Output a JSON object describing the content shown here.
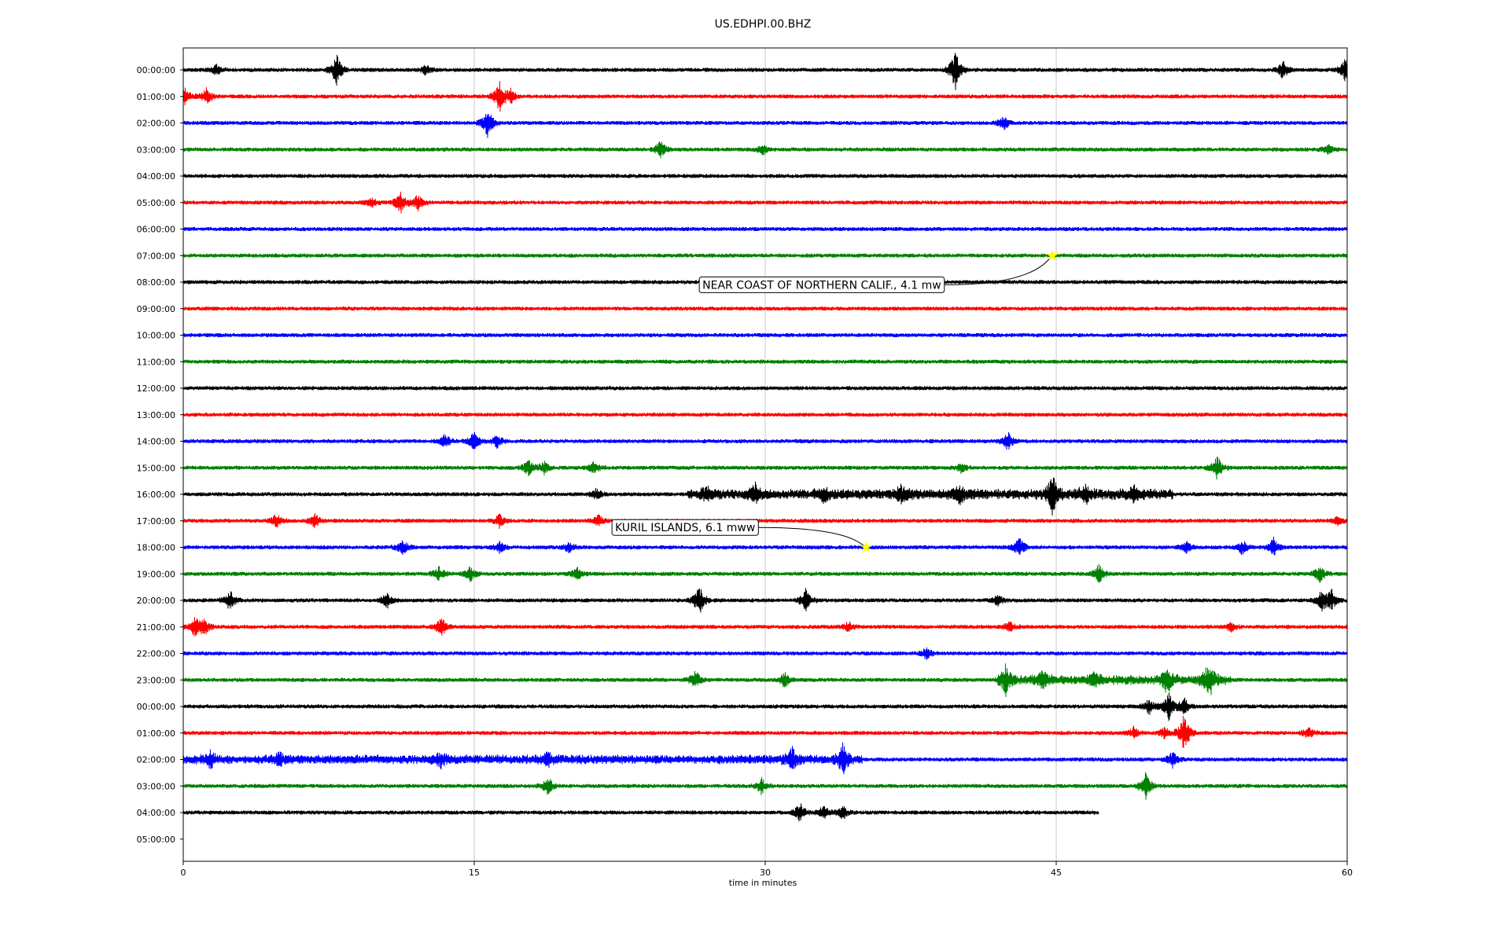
{
  "chart_data": {
    "type": "line",
    "title": "US.EDHPI.00.BHZ",
    "xlabel": "time in minutes",
    "ylabel": "",
    "xlim": [
      0,
      60
    ],
    "x_ticks": [
      "0",
      "15",
      "30",
      "45",
      "60"
    ],
    "x_tick_values": [
      0,
      15,
      30,
      45,
      60
    ],
    "grid": "vertical lines at 15, 30, 45",
    "row_labels": [
      "00:00:00",
      "01:00:00",
      "02:00:00",
      "03:00:00",
      "04:00:00",
      "05:00:00",
      "06:00:00",
      "07:00:00",
      "08:00:00",
      "09:00:00",
      "10:00:00",
      "11:00:00",
      "12:00:00",
      "13:00:00",
      "14:00:00",
      "15:00:00",
      "16:00:00",
      "17:00:00",
      "18:00:00",
      "19:00:00",
      "20:00:00",
      "21:00:00",
      "22:00:00",
      "23:00:00",
      "00:00:00",
      "01:00:00",
      "02:00:00",
      "03:00:00",
      "04:00:00",
      "05:00:00"
    ],
    "trace_colors": [
      "#000000",
      "#ff0000",
      "#0000ff",
      "#008000"
    ],
    "trace_end_minutes": [
      60,
      60,
      60,
      60,
      60,
      60,
      60,
      60,
      60,
      60,
      60,
      60,
      60,
      60,
      60,
      60,
      60,
      60,
      60,
      60,
      60,
      60,
      60,
      60,
      60,
      60,
      60,
      60,
      47.2
    ],
    "bursts": [
      {
        "row": 0,
        "t": 7.9,
        "amp": 20
      },
      {
        "row": 0,
        "t": 39.8,
        "amp": 26
      },
      {
        "row": 0,
        "t": 56.7,
        "amp": 12
      },
      {
        "row": 0,
        "t": 1.7,
        "amp": 7
      },
      {
        "row": 0,
        "t": 12.5,
        "amp": 6
      },
      {
        "row": 0,
        "t": 59.9,
        "amp": 14
      },
      {
        "row": 1,
        "t": 16.3,
        "amp": 22
      },
      {
        "row": 1,
        "t": 1.2,
        "amp": 10
      },
      {
        "row": 1,
        "t": 0.1,
        "amp": 10
      },
      {
        "row": 1,
        "t": 16.9,
        "amp": 8
      },
      {
        "row": 2,
        "t": 15.7,
        "amp": 18
      },
      {
        "row": 2,
        "t": 42.3,
        "amp": 9
      },
      {
        "row": 3,
        "t": 24.6,
        "amp": 11
      },
      {
        "row": 3,
        "t": 29.9,
        "amp": 6
      },
      {
        "row": 3,
        "t": 59.0,
        "amp": 6
      },
      {
        "row": 5,
        "t": 11.2,
        "amp": 14
      },
      {
        "row": 5,
        "t": 12.1,
        "amp": 10
      },
      {
        "row": 5,
        "t": 9.7,
        "amp": 6
      },
      {
        "row": 14,
        "t": 13.5,
        "amp": 9
      },
      {
        "row": 14,
        "t": 15.0,
        "amp": 12
      },
      {
        "row": 14,
        "t": 16.2,
        "amp": 8
      },
      {
        "row": 14,
        "t": 42.5,
        "amp": 12
      },
      {
        "row": 15,
        "t": 17.8,
        "amp": 10
      },
      {
        "row": 15,
        "t": 18.6,
        "amp": 8
      },
      {
        "row": 15,
        "t": 21.2,
        "amp": 8
      },
      {
        "row": 15,
        "t": 53.3,
        "amp": 16
      },
      {
        "row": 15,
        "t": 40.1,
        "amp": 6
      },
      {
        "row": 16,
        "t": 29.5,
        "amp": 10
      },
      {
        "row": 16,
        "t": 33.0,
        "amp": 9
      },
      {
        "row": 16,
        "t": 37.0,
        "amp": 8
      },
      {
        "row": 16,
        "t": 40.0,
        "amp": 10
      },
      {
        "row": 16,
        "t": 44.8,
        "amp": 26
      },
      {
        "row": 16,
        "t": 46.5,
        "amp": 10
      },
      {
        "row": 16,
        "t": 49.0,
        "amp": 7
      },
      {
        "row": 16,
        "t": 21.3,
        "amp": 7
      },
      {
        "row": 16,
        "t": 27.0,
        "amp": 7
      },
      {
        "row": 17,
        "t": 4.8,
        "amp": 9
      },
      {
        "row": 17,
        "t": 6.8,
        "amp": 8
      },
      {
        "row": 17,
        "t": 16.3,
        "amp": 8
      },
      {
        "row": 17,
        "t": 21.4,
        "amp": 7
      },
      {
        "row": 17,
        "t": 59.5,
        "amp": 5
      },
      {
        "row": 18,
        "t": 11.3,
        "amp": 10
      },
      {
        "row": 18,
        "t": 16.3,
        "amp": 7
      },
      {
        "row": 18,
        "t": 19.9,
        "amp": 7
      },
      {
        "row": 18,
        "t": 43.1,
        "amp": 12
      },
      {
        "row": 18,
        "t": 54.6,
        "amp": 9
      },
      {
        "row": 18,
        "t": 56.2,
        "amp": 12
      },
      {
        "row": 18,
        "t": 51.7,
        "amp": 7
      },
      {
        "row": 19,
        "t": 13.2,
        "amp": 9
      },
      {
        "row": 19,
        "t": 14.8,
        "amp": 9
      },
      {
        "row": 19,
        "t": 20.3,
        "amp": 8
      },
      {
        "row": 19,
        "t": 47.2,
        "amp": 12
      },
      {
        "row": 19,
        "t": 58.6,
        "amp": 11
      },
      {
        "row": 20,
        "t": 2.4,
        "amp": 13
      },
      {
        "row": 20,
        "t": 10.5,
        "amp": 10
      },
      {
        "row": 20,
        "t": 26.6,
        "amp": 20
      },
      {
        "row": 20,
        "t": 32.1,
        "amp": 14
      },
      {
        "row": 20,
        "t": 42.0,
        "amp": 7
      },
      {
        "row": 20,
        "t": 58.7,
        "amp": 14
      },
      {
        "row": 20,
        "t": 59.2,
        "amp": 12
      },
      {
        "row": 21,
        "t": 0.6,
        "amp": 12
      },
      {
        "row": 21,
        "t": 1.1,
        "amp": 10
      },
      {
        "row": 21,
        "t": 13.3,
        "amp": 13
      },
      {
        "row": 21,
        "t": 34.3,
        "amp": 7
      },
      {
        "row": 21,
        "t": 42.6,
        "amp": 7
      },
      {
        "row": 21,
        "t": 54.0,
        "amp": 6
      },
      {
        "row": 22,
        "t": 38.3,
        "amp": 7
      },
      {
        "row": 23,
        "t": 26.4,
        "amp": 12
      },
      {
        "row": 23,
        "t": 31.0,
        "amp": 10
      },
      {
        "row": 23,
        "t": 42.4,
        "amp": 16
      },
      {
        "row": 23,
        "t": 44.3,
        "amp": 11
      },
      {
        "row": 23,
        "t": 47.0,
        "amp": 9
      },
      {
        "row": 23,
        "t": 50.7,
        "amp": 16
      },
      {
        "row": 23,
        "t": 52.8,
        "amp": 13
      },
      {
        "row": 23,
        "t": 53.0,
        "amp": 10
      },
      {
        "row": 24,
        "t": 49.8,
        "amp": 10
      },
      {
        "row": 24,
        "t": 50.8,
        "amp": 18
      },
      {
        "row": 24,
        "t": 51.6,
        "amp": 10
      },
      {
        "row": 25,
        "t": 51.6,
        "amp": 26
      },
      {
        "row": 25,
        "t": 49.0,
        "amp": 7
      },
      {
        "row": 25,
        "t": 58.0,
        "amp": 8
      },
      {
        "row": 25,
        "t": 50.6,
        "amp": 7
      },
      {
        "row": 26,
        "t": 1.4,
        "amp": 8
      },
      {
        "row": 26,
        "t": 5.0,
        "amp": 7
      },
      {
        "row": 26,
        "t": 13.3,
        "amp": 8
      },
      {
        "row": 26,
        "t": 18.8,
        "amp": 7
      },
      {
        "row": 26,
        "t": 31.4,
        "amp": 14
      },
      {
        "row": 26,
        "t": 34.0,
        "amp": 18
      },
      {
        "row": 26,
        "t": 51.0,
        "amp": 10
      },
      {
        "row": 27,
        "t": 18.8,
        "amp": 12
      },
      {
        "row": 27,
        "t": 29.8,
        "amp": 10
      },
      {
        "row": 27,
        "t": 49.6,
        "amp": 18
      },
      {
        "row": 28,
        "t": 31.8,
        "amp": 12
      },
      {
        "row": 28,
        "t": 33.0,
        "amp": 9
      },
      {
        "row": 28,
        "t": 34.0,
        "amp": 9
      }
    ],
    "noisy_spans": [
      {
        "row": 16,
        "from": 26,
        "to": 51,
        "amp": 5
      },
      {
        "row": 26,
        "from": 0,
        "to": 35,
        "amp": 4
      },
      {
        "row": 23,
        "from": 42,
        "to": 54,
        "amp": 4
      }
    ],
    "events": [
      {
        "label": "NEAR COAST OF NORTHERN CALIF., 4.1 mw",
        "row": 7,
        "t": 44.8,
        "label_row": 8.1,
        "label_t": 26.6
      },
      {
        "label": "KURIL ISLANDS, 6.1 mww",
        "row": 18,
        "t": 35.2,
        "label_row": 17.25,
        "label_t": 22.1
      }
    ],
    "event_marker_color": "#ffff00"
  }
}
